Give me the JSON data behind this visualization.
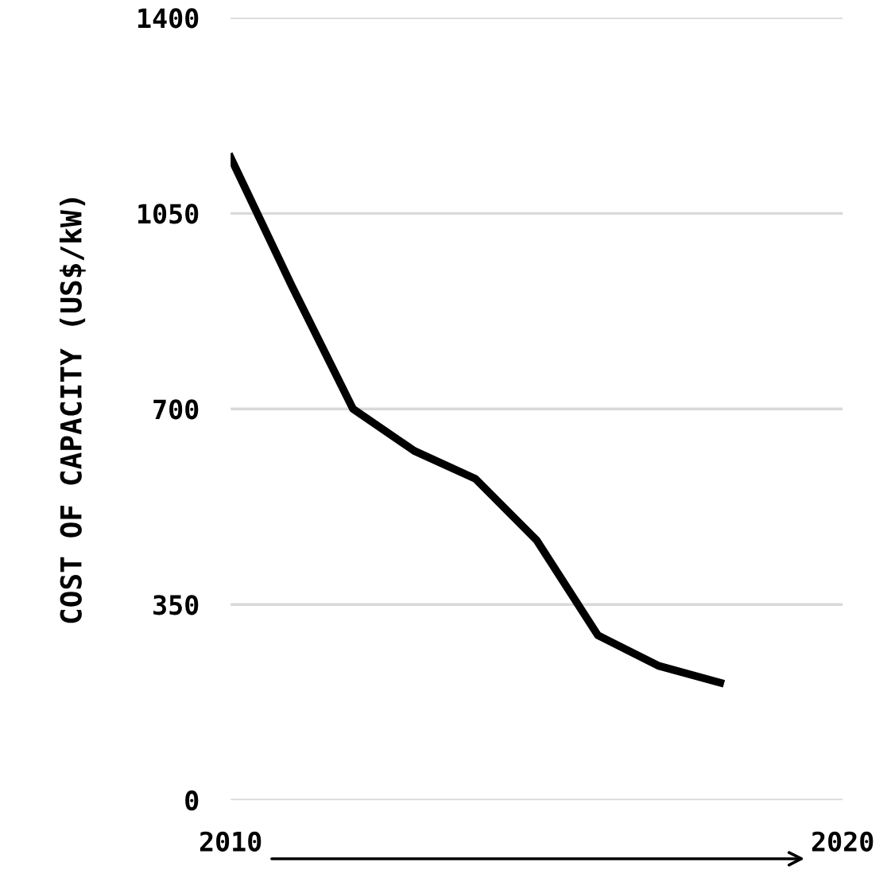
{
  "chart_data": {
    "type": "line",
    "ylabel": "COST OF CAPACITY (US$/kW)",
    "x": [
      2010,
      2011,
      2012,
      2013,
      2014,
      2015,
      2016,
      2017,
      2018
    ],
    "series": [
      {
        "color": "#000000",
        "values": [
          1150,
          920,
          700,
          625,
          575,
          465,
          295,
          240,
          210
        ]
      }
    ],
    "xlim": [
      2010,
      2020
    ],
    "xticks": [
      2010,
      2020
    ],
    "ylim": [
      0,
      1400
    ],
    "yticks": [
      0,
      350,
      700,
      1050,
      1400
    ],
    "grid": "y",
    "marker": "none",
    "line_style": "solid"
  }
}
